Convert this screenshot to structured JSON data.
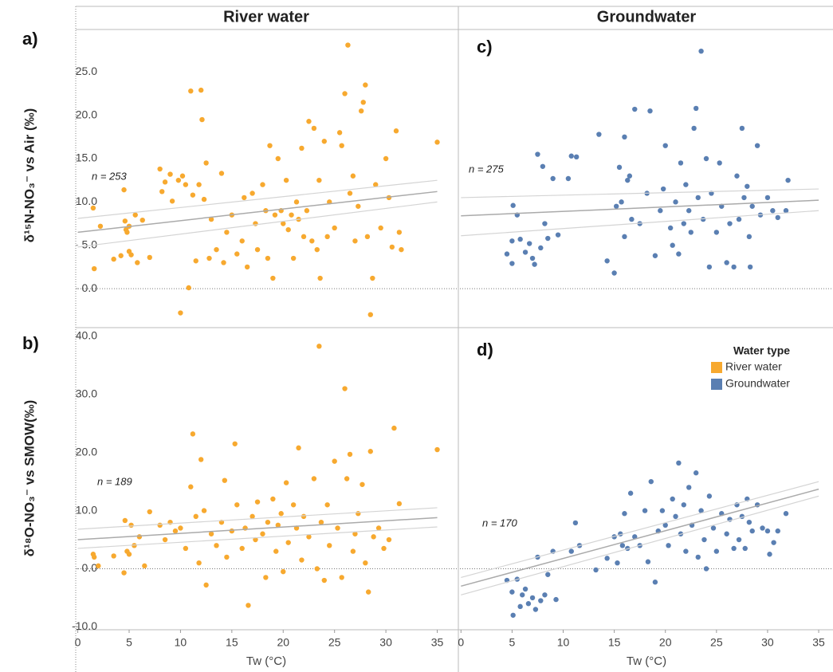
{
  "column_titles": [
    "River water",
    "Groundwater"
  ],
  "chart_data": [
    {
      "type": "scatter",
      "panel": "a)",
      "ylabel": "δ¹⁵N-NO₃⁻ vs Air (‰)",
      "annotation": "n = 253",
      "color": "#f7a92f",
      "xlim": [
        -0.2,
        36.9
      ],
      "ylim": [
        -4.5,
        29.9
      ],
      "yticks": [
        {
          "value": 0,
          "label": "0.0"
        },
        {
          "value": 5,
          "label": "5.0"
        },
        {
          "value": 10,
          "label": "10.0"
        },
        {
          "value": 15,
          "label": "15.0"
        },
        {
          "value": 20,
          "label": "20.0"
        },
        {
          "value": 25,
          "label": "25.0"
        }
      ],
      "x": [
        1.5,
        1.6,
        2.2,
        3.5,
        4.2,
        4.5,
        4.6,
        4.7,
        4.8,
        5,
        5,
        5.2,
        5.6,
        5.8,
        6.3,
        7,
        8,
        8.2,
        8.5,
        9,
        9.2,
        9.8,
        10,
        10.2,
        10.5,
        10.8,
        11,
        11.2,
        11.5,
        11.8,
        12,
        12.1,
        12.3,
        12.5,
        12.8,
        13,
        13.5,
        14,
        14.2,
        14.5,
        15,
        15.5,
        16,
        16.2,
        16.5,
        17,
        17.3,
        17.5,
        18,
        18.3,
        18.5,
        18.7,
        19,
        19.2,
        19.5,
        19.8,
        20,
        20.3,
        20.5,
        20.8,
        21,
        21.3,
        21.5,
        21.8,
        22,
        22.3,
        22.5,
        22.8,
        23,
        23.3,
        23.5,
        23.6,
        24,
        24.3,
        24.5,
        25,
        25.5,
        25.7,
        26,
        26.3,
        26.5,
        26.8,
        27,
        27.3,
        27.6,
        27.8,
        28,
        28.2,
        28.5,
        28.7,
        29,
        29.5,
        30,
        30.3,
        30.6,
        31,
        31.3,
        31.5,
        35
      ],
      "y": [
        9.3,
        2.3,
        7.2,
        3.4,
        3.8,
        11.4,
        7.8,
        6.8,
        6.5,
        7.2,
        4.3,
        3.9,
        8.5,
        3,
        7.9,
        3.6,
        13.8,
        11.2,
        12.3,
        13.2,
        10.1,
        12.5,
        -2.8,
        13,
        12,
        0.1,
        22.8,
        10.8,
        3.2,
        12,
        22.9,
        19.5,
        10.3,
        14.5,
        3.5,
        8,
        4.5,
        13.3,
        3,
        6.5,
        8.5,
        4,
        5.5,
        10.5,
        2.5,
        11,
        7.5,
        4.5,
        12,
        9,
        3.5,
        16.5,
        1.2,
        8.5,
        15,
        9,
        7.5,
        12.5,
        6.8,
        8.5,
        3.5,
        10,
        8,
        16.2,
        6,
        9,
        19.3,
        5.5,
        18.5,
        4.5,
        12.5,
        1.2,
        17,
        6,
        10,
        7,
        18,
        16.5,
        22.5,
        28.1,
        11,
        13,
        5.5,
        9.5,
        20.5,
        21.5,
        23.5,
        6,
        -3,
        1.2,
        12,
        7,
        15,
        10.5,
        4.8,
        18.2,
        6.5,
        4.5,
        16.9
      ],
      "fit": {
        "x": [
          0,
          35
        ],
        "y": [
          6.5,
          11.2
        ],
        "ci_upper": [
          8.1,
          12.5
        ],
        "ci_lower": [
          4.8,
          10.0
        ]
      }
    },
    {
      "type": "scatter",
      "panel": "b)",
      "ylabel": "δ¹⁸O-NO₃⁻ vs SMOW(‰)",
      "annotation": "n = 189",
      "color": "#f7a92f",
      "xlim": [
        -0.2,
        36.9
      ],
      "ylim": [
        -10.5,
        41.5
      ],
      "xlabel": "Tw (°C)",
      "xticks": [
        0,
        5,
        10,
        15,
        20,
        25,
        30,
        35
      ],
      "yticks": [
        {
          "value": -10,
          "label": "-10.0"
        },
        {
          "value": 0,
          "label": "0.0"
        },
        {
          "value": 10,
          "label": "10.0"
        },
        {
          "value": 20,
          "label": "20.0"
        },
        {
          "value": 30,
          "label": "30.0"
        },
        {
          "value": 40,
          "label": "40.0"
        }
      ],
      "x": [
        1.5,
        1.6,
        2,
        3.5,
        4.5,
        4.6,
        4.8,
        5,
        5.2,
        5.5,
        6,
        6.5,
        7,
        8,
        8.5,
        9,
        9.5,
        10,
        10.5,
        11,
        11.2,
        11.5,
        11.8,
        12,
        12.3,
        12.5,
        13,
        13.5,
        14,
        14.3,
        14.5,
        15,
        15.3,
        15.5,
        16,
        16.3,
        16.6,
        17,
        17.3,
        17.5,
        18,
        18.3,
        18.5,
        19,
        19.3,
        19.5,
        19.8,
        20,
        20.3,
        20.5,
        21,
        21.3,
        21.5,
        21.8,
        22,
        22.5,
        23,
        23.3,
        23.5,
        23.7,
        24,
        24.3,
        24.5,
        25,
        25.3,
        25.7,
        26,
        26.2,
        26.5,
        26.8,
        27,
        27.3,
        27.7,
        28,
        28.3,
        28.5,
        28.8,
        29.3,
        29.8,
        30.3,
        30.8,
        31.3,
        35
      ],
      "y": [
        2.5,
        2,
        0.5,
        2.2,
        -0.7,
        8.3,
        3,
        2.5,
        7.5,
        4,
        5.5,
        0.5,
        9.8,
        7.5,
        5,
        8,
        6.5,
        7,
        3.5,
        14.1,
        23.2,
        9,
        1,
        18.8,
        10,
        -2.8,
        6,
        4,
        8,
        15.2,
        2,
        6.5,
        21.5,
        11,
        3.5,
        7,
        -6.3,
        9,
        5,
        11.5,
        6,
        -1.5,
        8,
        12,
        3,
        7.5,
        9.5,
        -0.5,
        14.8,
        4.5,
        11,
        7,
        20.8,
        1.5,
        9,
        5.5,
        15.5,
        0,
        38.3,
        8,
        -2,
        11,
        4,
        18.5,
        7,
        -1.5,
        31,
        15.5,
        19.7,
        3,
        6,
        9.5,
        14.5,
        1,
        -4,
        20.2,
        5.5,
        7,
        3.5,
        5,
        24.2,
        11.2,
        20.5
      ],
      "fit": {
        "x": [
          0,
          35
        ],
        "y": [
          5.0,
          8.8
        ],
        "ci_upper": [
          6.8,
          10.5
        ],
        "ci_lower": [
          3.5,
          7.2
        ]
      }
    },
    {
      "type": "scatter",
      "panel": "c)",
      "annotation": "n = 275",
      "color": "#5a7fb2",
      "xlim": [
        -0.1,
        36.4
      ],
      "ylim": [
        -4.5,
        29.9
      ],
      "x": [
        4.5,
        5,
        5,
        5.1,
        5.5,
        5.8,
        6.3,
        6.7,
        7,
        7.2,
        7.5,
        7.8,
        8,
        8.2,
        8.5,
        9,
        9.5,
        10.5,
        10.8,
        11.3,
        13.5,
        14.3,
        15,
        15.2,
        15.5,
        15.7,
        16,
        16,
        16.3,
        16.5,
        16.7,
        17,
        17.5,
        18.2,
        18.5,
        19,
        19.5,
        19.8,
        20,
        20.5,
        20.7,
        21,
        21.3,
        21.5,
        21.8,
        22,
        22.3,
        22.5,
        22.8,
        23,
        23.2,
        23.5,
        23.7,
        24,
        24.3,
        24.5,
        25,
        25.3,
        25.5,
        26,
        26.3,
        26.7,
        27,
        27.2,
        27.5,
        27.7,
        28,
        28.2,
        28.3,
        28.5,
        29,
        29.3,
        30,
        30.5,
        31,
        31.8,
        32
      ],
      "y": [
        4,
        2.9,
        5.5,
        9.6,
        8.5,
        5.7,
        4.2,
        5.2,
        3.5,
        2.8,
        15.5,
        4.7,
        14.1,
        7.5,
        5.8,
        12.7,
        6.2,
        12.7,
        15.3,
        15.2,
        17.8,
        3.2,
        1.8,
        9.5,
        14,
        10,
        17.5,
        6,
        12.5,
        13,
        8,
        20.7,
        7.5,
        11,
        20.5,
        3.8,
        9,
        11.5,
        16.5,
        7,
        5,
        10,
        4,
        14.5,
        7.5,
        12,
        9,
        6.5,
        18.5,
        20.8,
        10.5,
        27.4,
        8,
        15,
        2.5,
        11,
        6.5,
        14.5,
        9.5,
        3,
        7.5,
        2.5,
        13,
        8,
        18.5,
        10.5,
        11.8,
        6,
        2.5,
        9.5,
        16.5,
        8.5,
        10.5,
        9,
        8.2,
        9,
        12.5
      ],
      "fit": {
        "x": [
          0,
          35
        ],
        "y": [
          8.4,
          10.2
        ],
        "ci_upper": [
          10.5,
          11.5
        ],
        "ci_lower": [
          6.1,
          9.0
        ]
      }
    },
    {
      "type": "scatter",
      "panel": "d)",
      "annotation": "n = 170",
      "color": "#5a7fb2",
      "xlim": [
        -0.1,
        36.4
      ],
      "ylim": [
        -10.5,
        41.5
      ],
      "xlabel": "Tw (°C)",
      "xticks": [
        0,
        5,
        10,
        15,
        20,
        25,
        30,
        35
      ],
      "x": [
        4.5,
        5,
        5.1,
        5.5,
        5.8,
        6,
        6.3,
        6.6,
        7,
        7.3,
        7.5,
        7.8,
        8.2,
        8.5,
        9,
        9.3,
        10.8,
        11.2,
        11.6,
        13.2,
        14.3,
        15,
        15.3,
        15.6,
        15.8,
        16,
        16.3,
        16.6,
        17,
        17.5,
        18,
        18.3,
        18.6,
        19,
        19.3,
        19.7,
        20,
        20.3,
        20.7,
        21,
        21.3,
        21.5,
        21.8,
        22,
        22.3,
        22.6,
        23,
        23.2,
        23.5,
        23.8,
        24,
        24.3,
        24.7,
        25,
        25.5,
        26,
        26.3,
        26.7,
        27,
        27.2,
        27.5,
        27.8,
        28,
        28.2,
        28.5,
        29,
        29.5,
        30,
        30.2,
        30.6,
        31,
        31.8
      ],
      "y": [
        -2,
        -4,
        -8,
        -1.8,
        -6.5,
        -4.5,
        -3.5,
        -6,
        -5,
        -7,
        2,
        -5.5,
        -4.5,
        -1,
        3,
        -5.3,
        3,
        7.9,
        4,
        -0.2,
        1.8,
        5.5,
        1,
        6,
        4,
        9.5,
        3.5,
        13,
        5.5,
        4,
        10,
        1.2,
        15,
        -2.3,
        6.5,
        10,
        7.5,
        4,
        12,
        9,
        18.2,
        6,
        11,
        3,
        14,
        7.5,
        16.5,
        2,
        10,
        5,
        0,
        12.5,
        7,
        3,
        9.5,
        6,
        8.5,
        3.5,
        11,
        5,
        9,
        3.5,
        12,
        8,
        6.5,
        11,
        7,
        6.5,
        2.5,
        4.5,
        6.5,
        9.5
      ],
      "fit": {
        "x": [
          0,
          35
        ],
        "y": [
          -3.0,
          13.7
        ],
        "ci_upper": [
          -1.5,
          15.0
        ],
        "ci_lower": [
          -4.5,
          12.5
        ]
      },
      "legend": {
        "title": "Water type",
        "items": [
          {
            "name": "River water",
            "color": "#f7a92f"
          },
          {
            "name": "Groundwater",
            "color": "#5a7fb2"
          }
        ],
        "corner": "top-right"
      }
    }
  ]
}
